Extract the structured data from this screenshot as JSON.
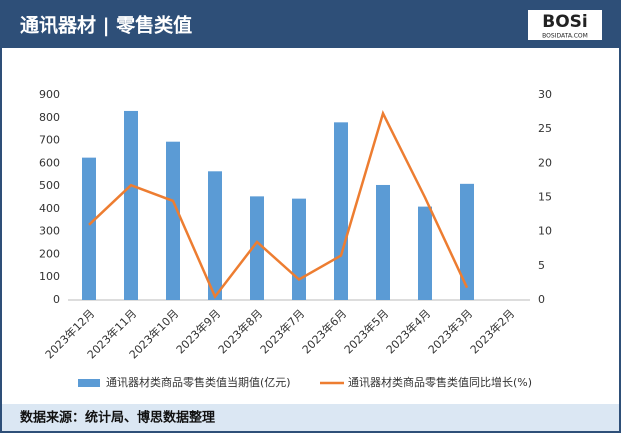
{
  "header": {
    "title": "通讯器材 | 零售类值",
    "logo": "BOSi",
    "logo_sub": "BOSIDATA.COM"
  },
  "chart_data": {
    "type": "bar-line",
    "categories": [
      "2023年12月",
      "2023年11月",
      "2023年10月",
      "2023年9月",
      "2023年8月",
      "2023年7月",
      "2023年6月",
      "2023年5月",
      "2023年4月",
      "2023年3月",
      "2023年2月"
    ],
    "series": [
      {
        "name": "通讯器材类商品零售类值当期值(亿元)",
        "type": "bar",
        "color": "#5b9bd5",
        "values": [
          625,
          830,
          695,
          565,
          455,
          445,
          780,
          505,
          410,
          510,
          null
        ]
      },
      {
        "name": "通讯器材类商品零售类值同比增长(%)",
        "type": "line",
        "axis": "y2",
        "color": "#ed7d31",
        "values": [
          11,
          16.8,
          14.5,
          0.5,
          8.5,
          3,
          6.5,
          27.3,
          15,
          1.8,
          null
        ]
      }
    ],
    "ylim": [
      0,
      900
    ],
    "yticks": [
      0,
      100,
      200,
      300,
      400,
      500,
      600,
      700,
      800,
      900
    ],
    "y2lim": [
      0,
      30
    ],
    "y2ticks": [
      0,
      5,
      10,
      15,
      20,
      25,
      30
    ],
    "grid": false,
    "legend": "bottom"
  },
  "footer": {
    "source": "数据来源：统计局、博思数据整理"
  }
}
